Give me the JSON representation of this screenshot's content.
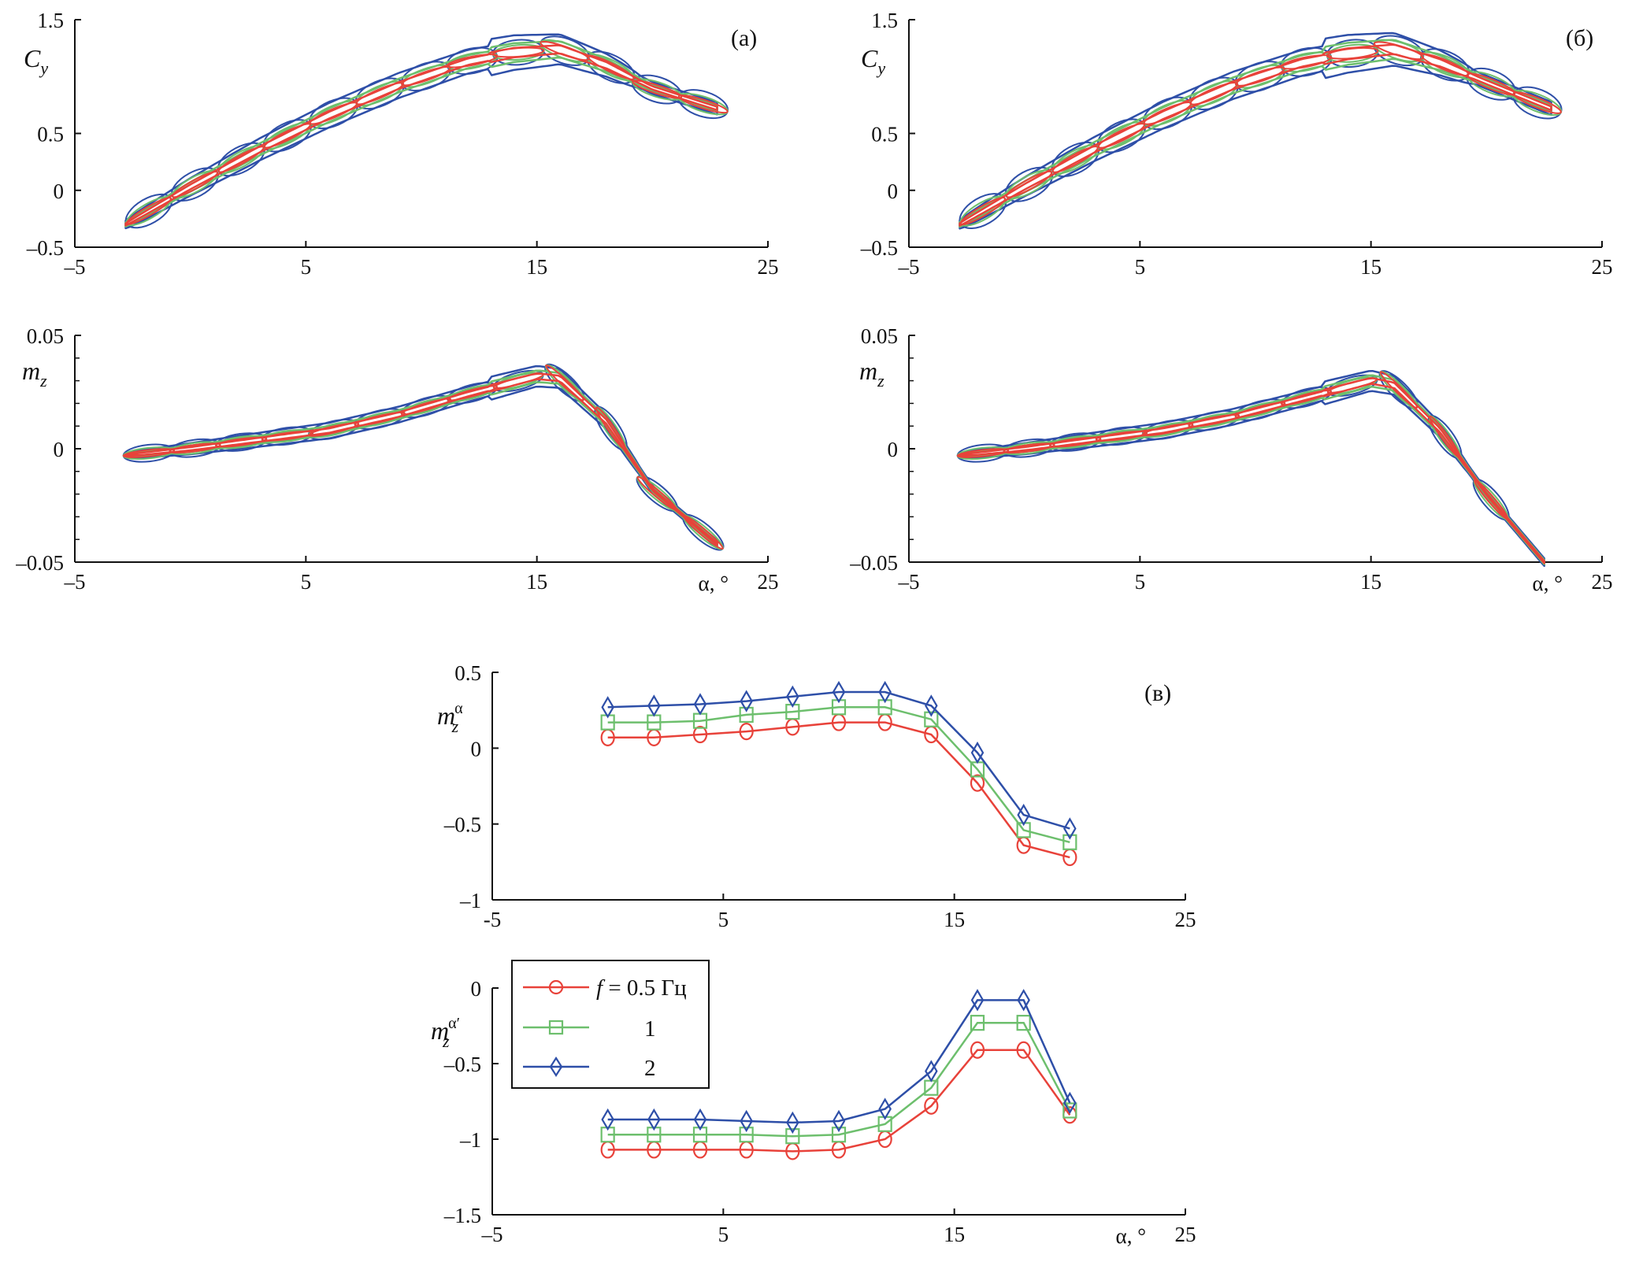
{
  "colors": {
    "f05": "#e8423a",
    "f1": "#6dbf6d",
    "f2": "#2e4fa8",
    "axis": "#111111"
  },
  "chart_data": [
    {
      "id": "a_cy",
      "panel": "(а)",
      "type": "line",
      "title": "",
      "xlabel": "",
      "ylabel": "C_y",
      "xlim": [
        -5,
        25
      ],
      "ylim": [
        -0.5,
        1.5
      ],
      "xticks": [
        -5,
        5,
        15,
        25
      ],
      "xtick_labels": [
        "–5",
        "5",
        "15",
        "25"
      ],
      "yticks": [
        -0.5,
        0,
        0.5,
        1.5
      ],
      "ytick_labels": [
        "–0.5",
        "0",
        "0.5",
        "1.5"
      ],
      "description": "Hysteresis loops of C_y vs alpha for oscillation frequencies 0.5, 1, 2 Hz",
      "mean_curve": {
        "x": [
          -2.8,
          0,
          3,
          6,
          9,
          12,
          14,
          16,
          18,
          20,
          22.8
        ],
        "y": [
          -0.3,
          0.03,
          0.36,
          0.66,
          0.92,
          1.13,
          1.21,
          1.24,
          1.1,
          0.9,
          0.72
        ]
      },
      "series": [
        {
          "name": "f = 0.5 Гц",
          "color_key": "f05",
          "loop_halfwidth": 0.03
        },
        {
          "name": "1",
          "color_key": "f1",
          "loop_halfwidth": 0.06
        },
        {
          "name": "2",
          "color_key": "f2",
          "loop_halfwidth": 0.11
        }
      ]
    },
    {
      "id": "a_mz",
      "panel": "(а)",
      "type": "line",
      "xlabel": "α, °",
      "ylabel": "m_z",
      "xlim": [
        -5,
        25
      ],
      "ylim": [
        -0.05,
        0.05
      ],
      "xticks": [
        -5,
        5,
        15,
        25
      ],
      "xtick_labels": [
        "–5",
        "5",
        "15",
        "25"
      ],
      "yticks": [
        -0.05,
        0,
        0.05
      ],
      "ytick_labels": [
        "–0.05",
        "0",
        "0.05"
      ],
      "mean_curve": {
        "x": [
          -2.8,
          0,
          3,
          6,
          9,
          12,
          15,
          16,
          18,
          20,
          22.8
        ],
        "y": [
          -0.003,
          0.0,
          0.004,
          0.008,
          0.015,
          0.024,
          0.032,
          0.031,
          0.012,
          -0.018,
          -0.042
        ]
      },
      "series": [
        {
          "name": "f = 0.5 Гц",
          "color_key": "f05",
          "loop_halfwidth": 0.001
        },
        {
          "name": "1",
          "color_key": "f1",
          "loop_halfwidth": 0.002
        },
        {
          "name": "2",
          "color_key": "f2",
          "loop_halfwidth": 0.0035
        }
      ]
    },
    {
      "id": "b_cy",
      "panel": "(б)",
      "type": "line",
      "ylabel": "C_y",
      "xlim": [
        -5,
        25
      ],
      "ylim": [
        -0.5,
        1.5
      ],
      "xticks": [
        -5,
        5,
        15,
        25
      ],
      "xtick_labels": [
        "–5",
        "5",
        "15",
        "25"
      ],
      "yticks": [
        -0.5,
        0,
        0.5,
        1.5
      ],
      "ytick_labels": [
        "–0.5",
        "0",
        "0.5",
        "1.5"
      ],
      "mean_curve": {
        "x": [
          -2.8,
          0,
          3,
          6,
          9,
          12,
          14,
          16,
          18,
          20,
          22.8
        ],
        "y": [
          -0.3,
          0.03,
          0.36,
          0.66,
          0.92,
          1.12,
          1.2,
          1.24,
          1.12,
          0.95,
          0.72
        ]
      },
      "series": [
        {
          "name": "f = 0.5 Гц",
          "color_key": "f05",
          "loop_halfwidth": 0.035
        },
        {
          "name": "1",
          "color_key": "f1",
          "loop_halfwidth": 0.07
        },
        {
          "name": "2",
          "color_key": "f2",
          "loop_halfwidth": 0.12
        }
      ]
    },
    {
      "id": "b_mz",
      "panel": "(б)",
      "type": "line",
      "xlabel": "α, °",
      "ylabel": "m_z",
      "xlim": [
        -5,
        25
      ],
      "ylim": [
        -0.05,
        0.05
      ],
      "xticks": [
        -5,
        5,
        15,
        25
      ],
      "xtick_labels": [
        "–5",
        "5",
        "15",
        "25"
      ],
      "yticks": [
        -0.05,
        0,
        0.05
      ],
      "ytick_labels": [
        "–0.05",
        "0",
        "0.05"
      ],
      "mean_curve": {
        "x": [
          -2.8,
          0,
          3,
          6,
          9,
          12,
          15,
          16,
          18,
          20,
          22.5
        ],
        "y": [
          -0.003,
          0.0,
          0.004,
          0.008,
          0.014,
          0.022,
          0.03,
          0.028,
          0.008,
          -0.02,
          -0.05
        ]
      },
      "series": [
        {
          "name": "f = 0.5 Гц",
          "color_key": "f05",
          "loop_halfwidth": 0.001
        },
        {
          "name": "1",
          "color_key": "f1",
          "loop_halfwidth": 0.002
        },
        {
          "name": "2",
          "color_key": "f2",
          "loop_halfwidth": 0.0035
        }
      ]
    },
    {
      "id": "v_mz_alpha",
      "panel": "(в)",
      "type": "line",
      "xlabel": "",
      "ylabel": "m_z^α",
      "xlim": [
        -5,
        25
      ],
      "ylim": [
        -1,
        0.5
      ],
      "xticks": [
        -5,
        5,
        15,
        25
      ],
      "xtick_labels": [
        "-5",
        "5",
        "15",
        "25"
      ],
      "yticks": [
        -1,
        -0.5,
        0,
        0.5
      ],
      "ytick_labels": [
        "–1",
        "–0.5",
        "0",
        "0.5"
      ],
      "x": [
        0,
        2,
        4,
        6,
        8,
        10,
        12,
        14,
        16,
        18,
        20
      ],
      "series": [
        {
          "name": "f = 0.5 Гц",
          "color_key": "f05",
          "marker": "circle",
          "values": [
            0.07,
            0.07,
            0.09,
            0.11,
            0.14,
            0.17,
            0.17,
            0.09,
            -0.23,
            -0.64,
            -0.72
          ]
        },
        {
          "name": "1",
          "color_key": "f1",
          "marker": "square",
          "values": [
            0.17,
            0.17,
            0.18,
            0.22,
            0.24,
            0.27,
            0.27,
            0.19,
            -0.14,
            -0.54,
            -0.62
          ]
        },
        {
          "name": "2",
          "color_key": "f2",
          "marker": "diamond",
          "values": [
            0.27,
            0.28,
            0.29,
            0.31,
            0.34,
            0.37,
            0.37,
            0.28,
            -0.03,
            -0.44,
            -0.53
          ]
        }
      ]
    },
    {
      "id": "v_mz_alphadot",
      "panel": "",
      "type": "line",
      "xlabel": "α, °",
      "ylabel": "m_z^α'",
      "xlim": [
        -5,
        25
      ],
      "ylim": [
        -1.5,
        0
      ],
      "xticks": [
        -5,
        5,
        15,
        25
      ],
      "xtick_labels": [
        "–5",
        "5",
        "15",
        "25"
      ],
      "yticks": [
        -1.5,
        -1,
        -0.5,
        0
      ],
      "ytick_labels": [
        "–1.5",
        "–1",
        "–0.5",
        "0"
      ],
      "legend": {
        "placement": "top-left",
        "entries": [
          "f = 0.5 Гц",
          "1",
          "2"
        ]
      },
      "x": [
        0,
        2,
        4,
        6,
        8,
        10,
        12,
        14,
        16,
        18,
        20
      ],
      "series": [
        {
          "name": "f = 0.5 Гц",
          "color_key": "f05",
          "marker": "circle",
          "values": [
            -1.07,
            -1.07,
            -1.07,
            -1.07,
            -1.08,
            -1.07,
            -1.0,
            -0.78,
            -0.41,
            -0.41,
            -0.84
          ]
        },
        {
          "name": "1",
          "color_key": "f1",
          "marker": "square",
          "values": [
            -0.97,
            -0.97,
            -0.97,
            -0.97,
            -0.98,
            -0.97,
            -0.9,
            -0.66,
            -0.23,
            -0.23,
            -0.81
          ]
        },
        {
          "name": "2",
          "color_key": "f2",
          "marker": "diamond",
          "values": [
            -0.87,
            -0.87,
            -0.87,
            -0.88,
            -0.89,
            -0.88,
            -0.8,
            -0.55,
            -0.08,
            -0.08,
            -0.76
          ]
        }
      ]
    }
  ],
  "labels": {
    "panel_a": "(а)",
    "panel_b": "(б)",
    "panel_v": "(в)",
    "cy": "C",
    "cy_sub": "y",
    "mz": "m",
    "mz_sub": "z",
    "mz_sup_alpha": "α",
    "mz_sup_alphadot": "α′",
    "alpha_axis": "α, °",
    "legend_f": "f",
    "legend_eq": " = 0.5 Гц",
    "legend_1": "1",
    "legend_2": "2"
  }
}
